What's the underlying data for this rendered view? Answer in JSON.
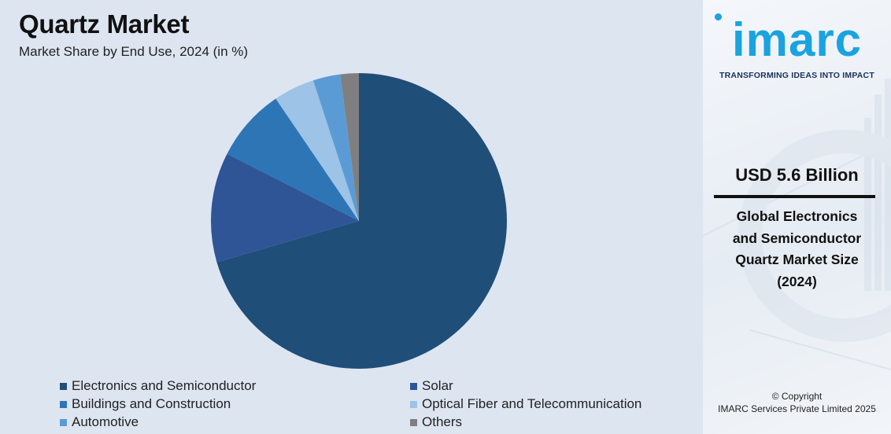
{
  "header": {
    "title": "Quartz Market",
    "subtitle": "Market Share by End Use, 2024 (in %)"
  },
  "chart_data": {
    "type": "pie",
    "title": "Quartz Market",
    "subtitle": "Market Share by End Use, 2024 (in %)",
    "legend_position": "bottom",
    "slices": [
      {
        "label": "Electronics and Semiconductor",
        "value": 70.5,
        "color": "#1f4e79"
      },
      {
        "label": "Solar",
        "value": 12.0,
        "color": "#2f5597"
      },
      {
        "label": "Buildings and Construction",
        "value": 8.0,
        "color": "#2e75b6"
      },
      {
        "label": "Optical Fiber and Telecommunication",
        "value": 4.5,
        "color": "#9dc3e6"
      },
      {
        "label": "Automotive",
        "value": 3.0,
        "color": "#5b9bd5"
      },
      {
        "label": "Others",
        "value": 2.0,
        "color": "#7f7f7f"
      }
    ]
  },
  "sidebar": {
    "logo_text": "imarc",
    "tagline": "TRANSFORMING IDEAS INTO IMPACT",
    "market_size": "USD 5.6 Billion",
    "market_desc_lines": [
      "Global Electronics",
      "and Semiconductor",
      "Quartz Market Size",
      "(2024)"
    ],
    "copyright_line1": "© Copyright",
    "copyright_line2": "IMARC Services Private Limited 2025"
  },
  "colors": {
    "chart_background": "#dde5f1",
    "brand_blue": "#1aa3e0",
    "tagline_navy": "#1b2f5c"
  }
}
